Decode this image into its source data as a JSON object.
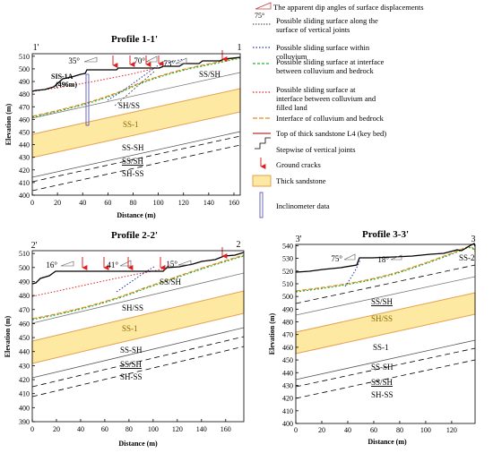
{
  "profile1": {
    "title": "Profile 1-1'",
    "corner_left": "1'",
    "corner_right": "1",
    "ylabel": "Elevation (m)",
    "xlabel": "Distance (m)",
    "xticks": [
      0,
      20,
      40,
      60,
      80,
      100,
      120,
      140,
      160
    ],
    "yticks": [
      400,
      410,
      420,
      430,
      440,
      450,
      460,
      470,
      480,
      490,
      500,
      510
    ],
    "xlim": [
      0,
      165
    ],
    "ylim": [
      400,
      512
    ],
    "inclinometer_label": "SIS-1A",
    "inclinometer_depth": "(496m)",
    "dip_labels": [
      "35°",
      "70°",
      "73°"
    ],
    "layer_labels": [
      "SS/SH",
      "SH/SS",
      "SS-1",
      "SS-SH",
      "SS/SH",
      "SH-SS"
    ]
  },
  "profile2": {
    "title": "Profile 2-2'",
    "corner_left": "2'",
    "corner_right": "2",
    "ylabel": "Elevation (m)",
    "xlabel": "Distance (m)",
    "xticks": [
      0,
      20,
      40,
      60,
      80,
      100,
      120,
      140,
      160
    ],
    "yticks": [
      390,
      400,
      410,
      420,
      430,
      440,
      450,
      460,
      470,
      480,
      490,
      500,
      510
    ],
    "xlim": [
      0,
      175
    ],
    "ylim": [
      390,
      512
    ],
    "dip_labels": [
      "16°",
      "41°",
      "15°"
    ],
    "layer_labels": [
      "SS/SH",
      "SH/SS",
      "SS-1",
      "SS-SH",
      "SS/SH",
      "SH-SS"
    ]
  },
  "profile3": {
    "title": "Profile 3-3'",
    "corner_left": "3'",
    "corner_right": "3",
    "ylabel": "Elevation (m)",
    "xlabel": "Distance (m)",
    "xticks": [
      0,
      20,
      40,
      60,
      80,
      100,
      120
    ],
    "yticks": [
      400,
      410,
      420,
      430,
      440,
      450,
      460,
      470,
      480,
      490,
      500,
      510,
      520,
      530,
      540
    ],
    "xlim": [
      0,
      138
    ],
    "ylim": [
      400,
      541
    ],
    "dip_labels": [
      "75°",
      "18°"
    ],
    "layer_labels": [
      "SS-2",
      "SS/SH",
      "SH/SS",
      "SS-1",
      "SS-SH",
      "SS/SH",
      "SH-SS"
    ]
  },
  "legend": {
    "items": [
      "The apparent dip angles of surface displacements",
      "Possible sliding surface along the surface of vertical joints",
      "Possible sliding surface within colluvium",
      "Possible sliding surface at interface between colluvium and bedrock",
      "Possible sliding surface at interface between colluvium and filled land",
      "Interface of colluvium and bedrock",
      "Top of thick sandstone L4 (key bed)",
      "Stepwise of vertical joints",
      "Ground cracks",
      "Thick sandstone",
      "Inclinometer data"
    ],
    "symbol_angle": "75°"
  },
  "colors": {
    "sandstone_fill": "#fde9a2",
    "sandstone_edge": "#e5a050",
    "ground": "#000000",
    "vertical_joint": "#3a3a3a",
    "colluvium": "#2233aa",
    "bedrock_interface": "#2bb036",
    "filled_land": "#e02020",
    "colluvium_bedrock": "#e58a20",
    "key_bed": "#c0302a",
    "crack": "#e02020",
    "inclinometer": "#4444aa",
    "layer_line": "#888888"
  }
}
